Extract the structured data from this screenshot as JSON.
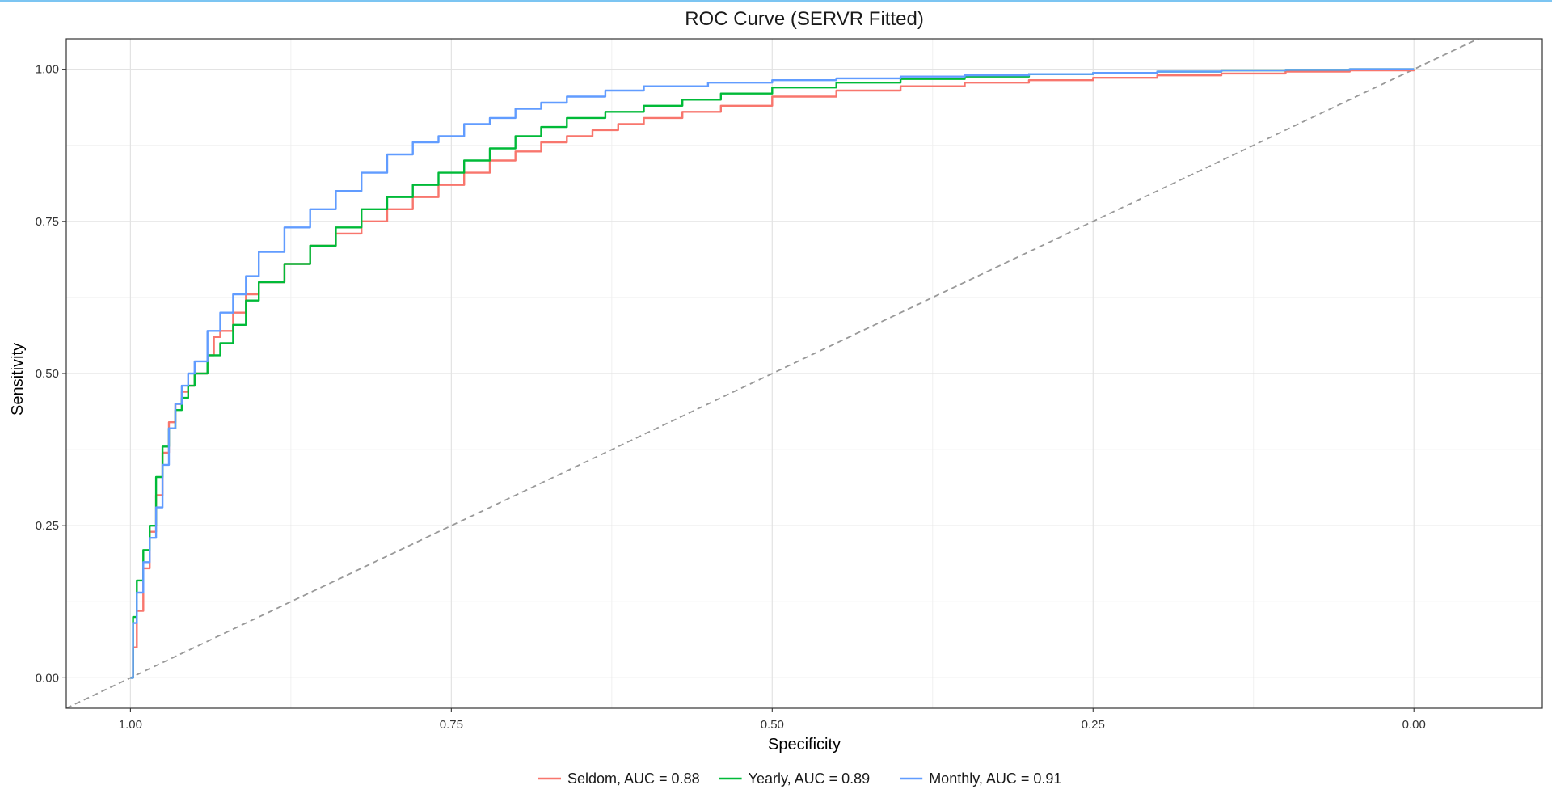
{
  "chart_data": {
    "type": "line",
    "title": "ROC Curve (SERVR Fitted)",
    "xlabel": "Specificity",
    "ylabel": "Sensitivity",
    "x_reversed": true,
    "xlim": [
      1.05,
      -0.1
    ],
    "ylim": [
      -0.05,
      1.05
    ],
    "x_ticks": [
      1.0,
      0.75,
      0.5,
      0.25,
      0.0
    ],
    "x_tick_labels": [
      "1.00",
      "0.75",
      "0.50",
      "0.25",
      "0.00"
    ],
    "y_ticks": [
      0.0,
      0.25,
      0.5,
      0.75,
      1.0
    ],
    "y_tick_labels": [
      "0.00",
      "0.25",
      "0.50",
      "0.75",
      "1.00"
    ],
    "grid": true,
    "legend_position": "bottom",
    "reference_line": {
      "style": "dashed",
      "color": "#999999"
    },
    "series": [
      {
        "name": "Seldom, AUC = 0.88",
        "color": "#F8766D",
        "specificity": [
          1.0,
          0.998,
          0.995,
          0.99,
          0.985,
          0.98,
          0.975,
          0.97,
          0.965,
          0.96,
          0.955,
          0.95,
          0.94,
          0.935,
          0.93,
          0.92,
          0.91,
          0.9,
          0.88,
          0.86,
          0.84,
          0.82,
          0.8,
          0.78,
          0.76,
          0.74,
          0.72,
          0.7,
          0.68,
          0.66,
          0.64,
          0.62,
          0.6,
          0.57,
          0.54,
          0.5,
          0.45,
          0.4,
          0.35,
          0.3,
          0.25,
          0.2,
          0.15,
          0.1,
          0.05,
          0.0
        ],
        "sensitivity": [
          0.0,
          0.05,
          0.11,
          0.18,
          0.24,
          0.3,
          0.37,
          0.42,
          0.45,
          0.47,
          0.48,
          0.5,
          0.53,
          0.56,
          0.57,
          0.6,
          0.63,
          0.65,
          0.68,
          0.71,
          0.73,
          0.75,
          0.77,
          0.79,
          0.81,
          0.83,
          0.85,
          0.865,
          0.88,
          0.89,
          0.9,
          0.91,
          0.92,
          0.93,
          0.94,
          0.955,
          0.965,
          0.972,
          0.978,
          0.982,
          0.986,
          0.99,
          0.993,
          0.996,
          0.998,
          1.0
        ]
      },
      {
        "name": "Yearly, AUC = 0.89",
        "color": "#00BA38",
        "specificity": [
          1.0,
          0.998,
          0.995,
          0.99,
          0.985,
          0.98,
          0.975,
          0.97,
          0.965,
          0.96,
          0.955,
          0.95,
          0.94,
          0.93,
          0.92,
          0.91,
          0.9,
          0.88,
          0.86,
          0.84,
          0.82,
          0.8,
          0.78,
          0.76,
          0.74,
          0.72,
          0.7,
          0.68,
          0.66,
          0.63,
          0.6,
          0.57,
          0.54,
          0.5,
          0.45,
          0.4,
          0.35,
          0.3,
          0.25,
          0.2,
          0.15,
          0.1,
          0.05,
          0.0
        ],
        "sensitivity": [
          0.0,
          0.1,
          0.16,
          0.21,
          0.25,
          0.33,
          0.38,
          0.41,
          0.44,
          0.46,
          0.48,
          0.5,
          0.53,
          0.55,
          0.58,
          0.62,
          0.65,
          0.68,
          0.71,
          0.74,
          0.77,
          0.79,
          0.81,
          0.83,
          0.85,
          0.87,
          0.89,
          0.905,
          0.92,
          0.93,
          0.94,
          0.95,
          0.96,
          0.97,
          0.978,
          0.984,
          0.988,
          0.992,
          0.994,
          0.996,
          0.998,
          0.999,
          1.0,
          1.0
        ]
      },
      {
        "name": "Monthly, AUC = 0.91",
        "color": "#619CFF",
        "specificity": [
          1.0,
          0.998,
          0.995,
          0.99,
          0.985,
          0.98,
          0.975,
          0.97,
          0.965,
          0.96,
          0.955,
          0.95,
          0.94,
          0.93,
          0.92,
          0.91,
          0.9,
          0.88,
          0.86,
          0.84,
          0.82,
          0.8,
          0.78,
          0.76,
          0.74,
          0.72,
          0.7,
          0.68,
          0.66,
          0.63,
          0.6,
          0.55,
          0.5,
          0.45,
          0.4,
          0.35,
          0.3,
          0.25,
          0.2,
          0.15,
          0.1,
          0.05,
          0.0
        ],
        "sensitivity": [
          0.0,
          0.09,
          0.14,
          0.19,
          0.23,
          0.28,
          0.35,
          0.41,
          0.45,
          0.48,
          0.5,
          0.52,
          0.57,
          0.6,
          0.63,
          0.66,
          0.7,
          0.74,
          0.77,
          0.8,
          0.83,
          0.86,
          0.88,
          0.89,
          0.91,
          0.92,
          0.935,
          0.945,
          0.955,
          0.965,
          0.972,
          0.978,
          0.982,
          0.985,
          0.988,
          0.99,
          0.992,
          0.994,
          0.996,
          0.998,
          0.999,
          1.0,
          1.0
        ]
      }
    ]
  }
}
